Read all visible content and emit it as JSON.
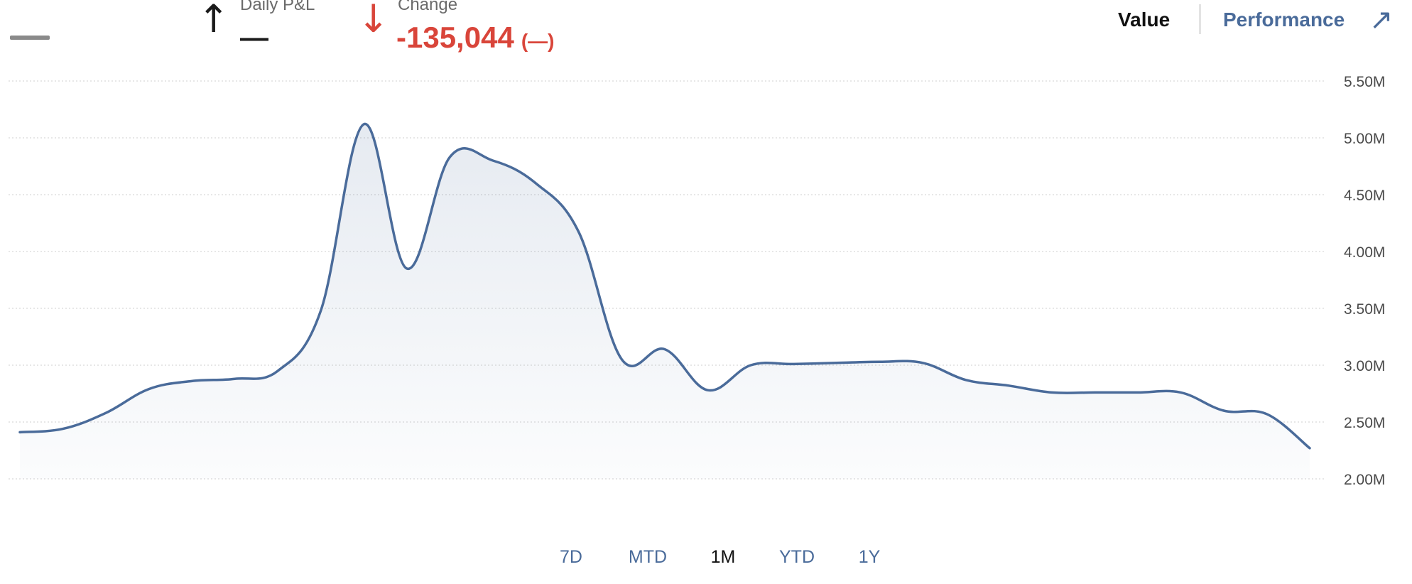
{
  "header": {
    "primary_value": "—",
    "daily_pl": {
      "label": "Daily P&L",
      "value": "—",
      "direction": "up"
    },
    "change": {
      "label": "Change",
      "value": "-135,044",
      "percent": "(—)",
      "direction": "down"
    }
  },
  "toggle": {
    "value_label": "Value",
    "performance_label": "Performance",
    "active": "Value"
  },
  "colors": {
    "line": "#4a6b9a",
    "negative": "#d9453a",
    "link": "#4a6b9a",
    "grid": "#cfcfcf"
  },
  "range_tabs": {
    "items": [
      {
        "label": "7D"
      },
      {
        "label": "MTD"
      },
      {
        "label": "1M"
      },
      {
        "label": "YTD"
      },
      {
        "label": "1Y"
      }
    ],
    "active": "1M"
  },
  "chart_data": {
    "type": "area",
    "y_ticks": [
      "5.50M",
      "5.00M",
      "4.50M",
      "4.00M",
      "3.50M",
      "3.00M",
      "2.50M",
      "2.00M"
    ],
    "ylim": [
      2000000,
      5500000
    ],
    "grid": true,
    "series": [
      {
        "x": [
          0,
          1,
          2,
          3,
          4,
          5,
          6,
          7,
          8,
          9,
          10,
          11,
          12,
          13,
          14,
          15,
          16,
          17,
          18,
          19,
          20,
          21,
          22,
          23,
          24,
          25,
          26,
          27,
          28,
          29,
          30
        ],
        "values": [
          2410000,
          2440000,
          2580000,
          2790000,
          2860000,
          2880000,
          2950000,
          3480000,
          5120000,
          3850000,
          4830000,
          4800000,
          4600000,
          4170000,
          3050000,
          3140000,
          2780000,
          3000000,
          3010000,
          3020000,
          3030000,
          3020000,
          2870000,
          2820000,
          2760000,
          2760000,
          2760000,
          2760000,
          2600000,
          2570000,
          2270000
        ]
      }
    ]
  }
}
